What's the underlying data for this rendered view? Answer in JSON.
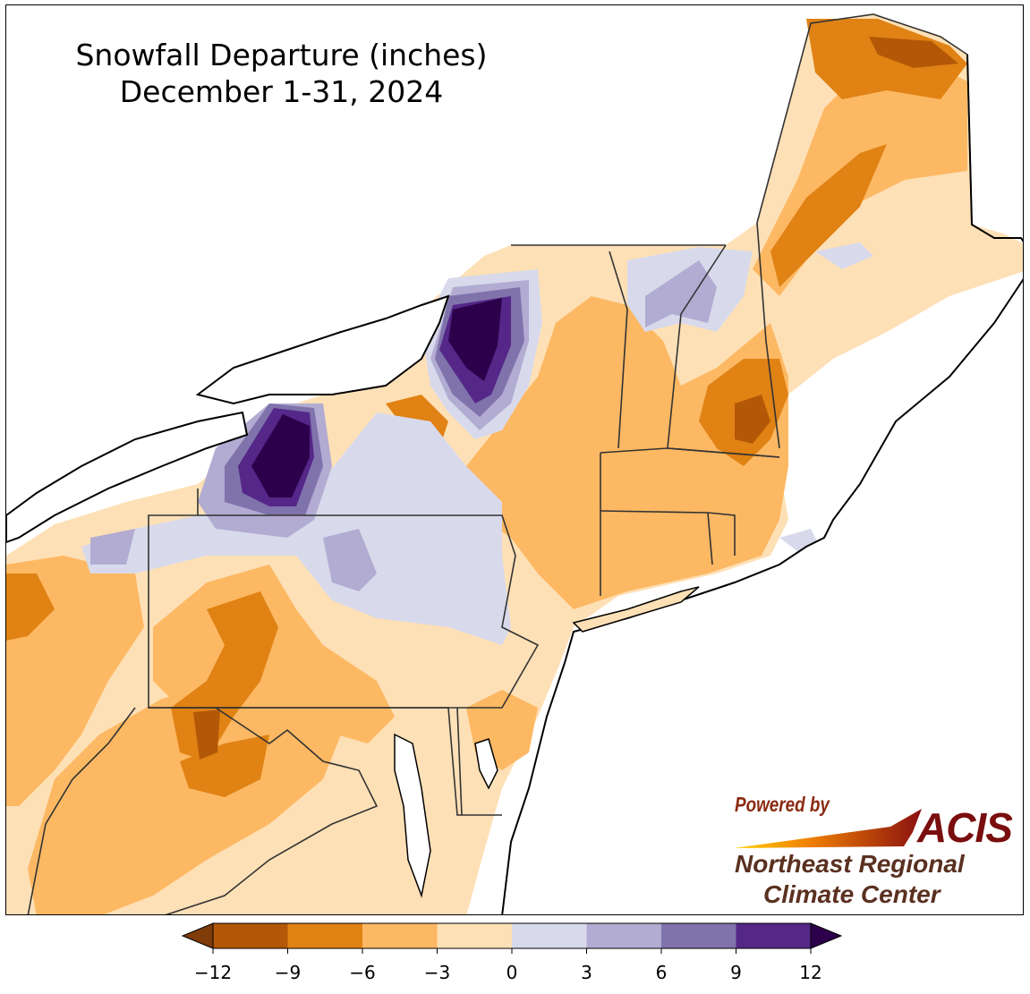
{
  "title": {
    "line1": "Snowfall Departure (inches)",
    "line2": "December 1-31, 2024"
  },
  "logo": {
    "powered_by": "Powered by",
    "brand": "ACIS",
    "org_line1": "Northeast Regional",
    "org_line2": "Climate Center"
  },
  "legend": {
    "bins": [
      {
        "from": -12,
        "to": -9,
        "color": "#b35806"
      },
      {
        "from": -9,
        "to": -6,
        "color": "#e08214"
      },
      {
        "from": -6,
        "to": -3,
        "color": "#fdb863"
      },
      {
        "from": -3,
        "to": 0,
        "color": "#fee0b6"
      },
      {
        "from": 0,
        "to": 3,
        "color": "#d8daeb"
      },
      {
        "from": 3,
        "to": 6,
        "color": "#b2abd2"
      },
      {
        "from": 6,
        "to": 9,
        "color": "#8073ac"
      },
      {
        "from": 9,
        "to": 12,
        "color": "#542788"
      }
    ],
    "under_color": "#7f3b08",
    "over_color": "#2d004b",
    "ticks": [
      "−12",
      "−9",
      "−6",
      "−3",
      "0",
      "3",
      "6",
      "9",
      "12"
    ]
  },
  "colors": {
    "land_default": "#fee0b6",
    "water": "#ffffff",
    "state_border": "#333333",
    "county_border": "#999999"
  }
}
